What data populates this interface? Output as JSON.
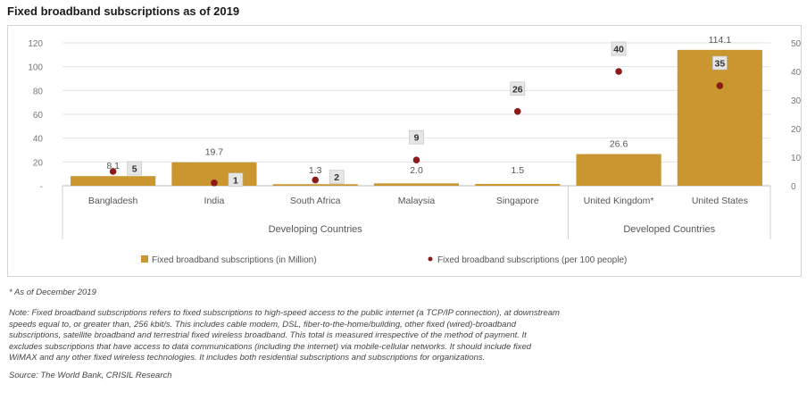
{
  "title": "Fixed broadband subscriptions as of 2019",
  "colors": {
    "bar": "#c9962f",
    "marker": "#8b1a1a",
    "grid": "#e3e3e3",
    "label_box": "#e6e6e6"
  },
  "chart_data": {
    "type": "bar",
    "categories": [
      "Bangladesh",
      "India",
      "South Africa",
      "Malaysia",
      "Singapore",
      "United Kingdom*",
      "United States"
    ],
    "groups": [
      {
        "label": "Developing Countries",
        "from": 0,
        "to": 4
      },
      {
        "label": "Developed Countries",
        "from": 5,
        "to": 6
      }
    ],
    "series": [
      {
        "name": "Fixed broadband subscriptions (in Million)",
        "type": "bar",
        "axis": "left",
        "values": [
          8.1,
          19.7,
          1.3,
          2.0,
          1.5,
          26.6,
          114.1
        ],
        "labels": [
          "8.1",
          "19.7",
          "1.3",
          "2.0",
          "1.5",
          "26.6",
          "114.1"
        ]
      },
      {
        "name": "Fixed broadband subscriptions (per 100 people)",
        "type": "scatter",
        "axis": "right",
        "values": [
          5,
          1,
          2,
          9,
          26,
          40,
          35
        ],
        "labels": [
          "5",
          "1",
          "2",
          "9",
          "26",
          "40",
          "35"
        ]
      }
    ],
    "y_left": {
      "min": 0,
      "max": 120,
      "ticks": [
        "-",
        "20",
        "40",
        "60",
        "80",
        "100",
        "120"
      ]
    },
    "y_right": {
      "min": 0,
      "max": 50,
      "ticks": [
        "0",
        "10",
        "20",
        "30",
        "40",
        "50"
      ]
    },
    "legend_position": "bottom"
  },
  "footnotes": {
    "as_of": "* As of December 2019",
    "note_lines": [
      "Note: Fixed broadband subscriptions refers to fixed subscriptions to high-speed access to the public internet (a TCP/IP connection), at downstream",
      "speeds equal to, or greater than, 256 kbit/s. This includes cable modem, DSL, fiber-to-the-home/building, other fixed (wired)-broadband",
      "subscriptions, satellite broadband and terrestrial fixed wireless broadband. This total is measured irrespective of the method of payment. It",
      "excludes subscriptions that have access to data communications (including the internet) via mobile-cellular networks. It should include fixed",
      "WiMAX and any other fixed wireless technologies. It includes both residential subscriptions and subscriptions for organizations."
    ],
    "source": "Source: The World Bank, CRISIL Research"
  }
}
